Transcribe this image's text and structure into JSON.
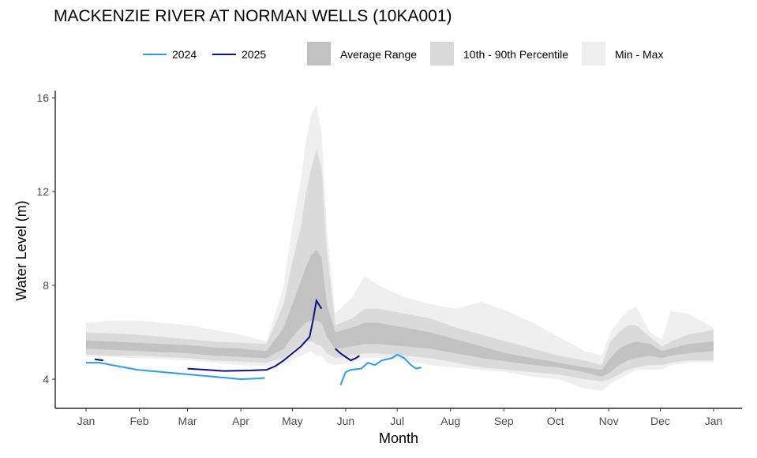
{
  "chart_data": {
    "type": "area",
    "title": "MACKENZIE RIVER AT NORMAN WELLS (10KA001)",
    "xlabel": "Month",
    "ylabel": "Water Level (m)",
    "ylim": [
      2.8,
      16.3
    ],
    "yticks": [
      4,
      8,
      12,
      16
    ],
    "xticks": [
      "Jan",
      "Feb",
      "Mar",
      "Apr",
      "May",
      "Jun",
      "Jul",
      "Aug",
      "Sep",
      "Oct",
      "Nov",
      "Dec",
      "Jan"
    ],
    "xtick_days": [
      0,
      31,
      59,
      90,
      120,
      151,
      181,
      212,
      243,
      273,
      304,
      334,
      365
    ],
    "legend": {
      "placement": "top",
      "series": [
        "2024",
        "2025"
      ],
      "bands": [
        "Average Range",
        "10th - 90th Percentile",
        "Min - Max"
      ]
    },
    "colors": {
      "2024": "#2b9bf4",
      "2025": "#10108a",
      "avg": "#c2c2c2",
      "pct": "#dadada",
      "minmax": "#efefef"
    },
    "bands": {
      "day": [
        0,
        15,
        30,
        45,
        60,
        75,
        90,
        105,
        115,
        120,
        125,
        128,
        131,
        134,
        137,
        140,
        145,
        155,
        162,
        170,
        185,
        200,
        215,
        230,
        245,
        260,
        275,
        290,
        300,
        305,
        310,
        315,
        320,
        328,
        335,
        340,
        350,
        365
      ],
      "min": [
        4.95,
        4.95,
        4.9,
        4.85,
        4.8,
        4.7,
        4.6,
        4.55,
        4.6,
        4.8,
        5.0,
        5.1,
        5.2,
        5.0,
        5.0,
        4.7,
        4.6,
        4.7,
        4.9,
        4.9,
        4.8,
        4.6,
        4.5,
        4.4,
        4.3,
        4.1,
        4.0,
        3.6,
        3.5,
        3.8,
        4.0,
        4.2,
        4.4,
        4.4,
        4.4,
        4.6,
        4.7,
        4.7
      ],
      "p10": [
        5.05,
        5.0,
        5.0,
        4.95,
        4.9,
        4.8,
        4.75,
        4.7,
        4.9,
        5.2,
        5.5,
        5.6,
        5.6,
        5.5,
        5.4,
        5.1,
        4.9,
        5.0,
        5.1,
        5.1,
        5.0,
        4.9,
        4.7,
        4.5,
        4.4,
        4.3,
        4.2,
        4.0,
        3.9,
        4.0,
        4.2,
        4.4,
        4.5,
        4.6,
        4.6,
        4.7,
        4.8,
        4.8
      ],
      "q25": [
        5.3,
        5.25,
        5.2,
        5.15,
        5.1,
        5.0,
        4.95,
        4.9,
        5.3,
        5.8,
        6.2,
        6.4,
        6.5,
        6.5,
        6.4,
        5.8,
        5.3,
        5.4,
        5.5,
        5.5,
        5.4,
        5.3,
        5.1,
        4.9,
        4.75,
        4.6,
        4.5,
        4.3,
        4.1,
        4.3,
        4.6,
        4.8,
        4.9,
        5.0,
        4.9,
        5.0,
        5.1,
        5.2
      ],
      "q75": [
        5.65,
        5.6,
        5.55,
        5.5,
        5.45,
        5.35,
        5.3,
        5.2,
        6.2,
        7.2,
        8.2,
        8.8,
        9.3,
        9.5,
        9.2,
        7.2,
        6.0,
        6.2,
        6.4,
        6.4,
        6.2,
        6.0,
        5.7,
        5.4,
        5.1,
        4.9,
        4.7,
        4.5,
        4.4,
        4.9,
        5.3,
        5.5,
        5.6,
        5.5,
        5.2,
        5.3,
        5.5,
        5.6
      ],
      "p90": [
        6.0,
        5.95,
        5.9,
        5.8,
        5.7,
        5.6,
        5.55,
        5.5,
        7.2,
        9.0,
        10.5,
        12.0,
        13.0,
        13.8,
        13.0,
        9.5,
        6.3,
        6.6,
        7.0,
        7.0,
        6.8,
        6.6,
        6.2,
        5.9,
        5.6,
        5.3,
        5.0,
        4.8,
        4.6,
        5.6,
        6.0,
        6.3,
        6.3,
        5.8,
        5.4,
        5.6,
        5.9,
        6.1
      ],
      "max": [
        6.4,
        6.5,
        6.5,
        6.4,
        6.3,
        6.1,
        5.9,
        5.6,
        8.0,
        10.5,
        12.5,
        14.2,
        15.3,
        15.7,
        14.5,
        10.5,
        6.8,
        7.5,
        8.4,
        8.0,
        7.5,
        7.2,
        7.0,
        7.3,
        6.9,
        6.4,
        5.8,
        5.2,
        5.0,
        6.0,
        6.5,
        6.9,
        7.1,
        6.0,
        5.7,
        6.9,
        6.8,
        6.2
      ]
    },
    "series": [
      {
        "name": "2024",
        "segments": [
          {
            "day": [
              0,
              8,
              15,
              30,
              45,
              60,
              75,
              90,
              100,
              104
            ],
            "value": [
              4.7,
              4.7,
              4.6,
              4.4,
              4.3,
              4.2,
              4.1,
              4.0,
              4.03,
              4.05
            ]
          },
          {
            "day": [
              148,
              151,
              154,
              160,
              164,
              168,
              172,
              175,
              178,
              181,
              185,
              189,
              192,
              195
            ],
            "value": [
              3.75,
              4.3,
              4.4,
              4.45,
              4.7,
              4.6,
              4.8,
              4.85,
              4.9,
              5.05,
              4.9,
              4.6,
              4.45,
              4.5
            ]
          }
        ]
      },
      {
        "name": "2025",
        "segments": [
          {
            "day": [
              5,
              10
            ],
            "value": [
              4.85,
              4.8
            ]
          },
          {
            "day": [
              59,
              70,
              80,
              95,
              105,
              110,
              115,
              120,
              125,
              130,
              132,
              134,
              137
            ],
            "value": [
              4.45,
              4.4,
              4.35,
              4.37,
              4.4,
              4.55,
              4.8,
              5.1,
              5.4,
              5.8,
              6.5,
              7.35,
              7.0
            ]
          },
          {
            "day": [
              145,
              148,
              151,
              154,
              157,
              159
            ],
            "value": [
              5.3,
              5.1,
              4.95,
              4.8,
              4.9,
              5.0
            ]
          }
        ]
      }
    ]
  }
}
